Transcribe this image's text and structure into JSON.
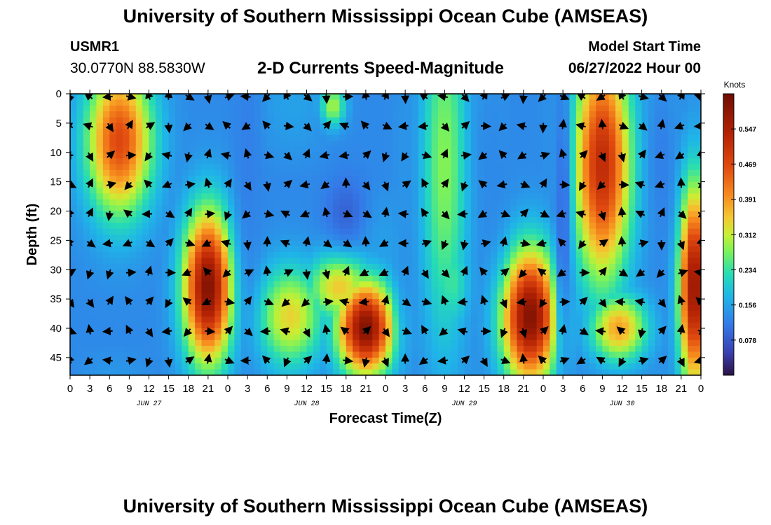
{
  "header": {
    "title": "University of Southern Mississippi Ocean Cube (AMSEAS)",
    "station_id": "USMR1",
    "coords": "30.0770N  88.5830W",
    "subtitle": "2-D Currents Speed-Magnitude",
    "start_label": "Model Start Time",
    "start_value": "06/27/2022 Hour 00"
  },
  "footer": {
    "title": "University of Southern Mississippi Ocean Cube (AMSEAS)"
  },
  "chart_data": {
    "type": "heatmap",
    "title": "2-D Currents Speed-Magnitude",
    "xlabel": "Forecast Time(Z)",
    "ylabel": "Depth (ft)",
    "x_range_hours": [
      0,
      96
    ],
    "y_range_ft": [
      0,
      48
    ],
    "x_ticks": [
      "0",
      "3",
      "6",
      "9",
      "12",
      "15",
      "18",
      "21",
      "0",
      "3",
      "6",
      "9",
      "12",
      "15",
      "18",
      "21",
      "0",
      "3",
      "6",
      "9",
      "12",
      "15",
      "18",
      "21",
      "0",
      "3",
      "6",
      "9",
      "12",
      "15",
      "18",
      "21",
      "0"
    ],
    "y_ticks": [
      "0",
      "5",
      "10",
      "15",
      "20",
      "25",
      "30",
      "35",
      "40",
      "45"
    ],
    "day_labels": [
      {
        "label": "JUN 27",
        "hour": 12
      },
      {
        "label": "JUN 28",
        "hour": 36
      },
      {
        "label": "JUN 29",
        "hour": 60
      },
      {
        "label": "JUN 30",
        "hour": 84
      }
    ],
    "colorbar": {
      "unit": "Knots",
      "ticks": [
        "0.547",
        "0.469",
        "0.391",
        "0.312",
        "0.234",
        "0.156",
        "0.078"
      ],
      "tick_values": [
        0.547,
        0.469,
        0.391,
        0.312,
        0.234,
        0.156,
        0.078
      ],
      "range": [
        0.0,
        0.625
      ]
    },
    "speed_blobs": [
      {
        "t": 7.5,
        "d": 8,
        "st": 3.5,
        "sd": 9,
        "v": 0.47
      },
      {
        "t": 21,
        "d": 33,
        "st": 2.6,
        "sd": 9,
        "v": 0.6
      },
      {
        "t": 33.5,
        "d": 38,
        "st": 3.5,
        "sd": 6,
        "v": 0.34
      },
      {
        "t": 45,
        "d": 40,
        "st": 3,
        "sd": 5.5,
        "v": 0.6
      },
      {
        "t": 41,
        "d": 33,
        "st": 3.5,
        "sd": 4,
        "v": 0.35
      },
      {
        "t": 57,
        "d": 12,
        "st": 2.5,
        "sd": 22,
        "v": 0.28
      },
      {
        "t": 70,
        "d": 38,
        "st": 3,
        "sd": 8,
        "v": 0.6
      },
      {
        "t": 81,
        "d": 12,
        "st": 3,
        "sd": 14,
        "v": 0.52
      },
      {
        "t": 83.5,
        "d": 40,
        "st": 3,
        "sd": 4,
        "v": 0.38
      },
      {
        "t": 95,
        "d": 33,
        "st": 1.6,
        "sd": 12,
        "v": 0.58
      },
      {
        "t": 58,
        "d": 32,
        "st": 2,
        "sd": 6,
        "v": 0.24
      },
      {
        "t": 40,
        "d": 2,
        "st": 1.3,
        "sd": 2.5,
        "v": 0.3
      }
    ],
    "low_blobs": [
      {
        "t": 27,
        "d": 10,
        "st": 1.5,
        "sd": 18,
        "v": 0.12
      },
      {
        "t": 51,
        "d": 14,
        "st": 1.2,
        "sd": 22,
        "v": 0.14
      },
      {
        "t": 64,
        "d": 10,
        "st": 1.8,
        "sd": 12,
        "v": 0.13
      },
      {
        "t": 90,
        "d": 10,
        "st": 1.3,
        "sd": 10,
        "v": 0.12
      },
      {
        "t": 42,
        "d": 20,
        "st": 2.2,
        "sd": 4,
        "v": 0.09
      },
      {
        "t": 75,
        "d": 20,
        "st": 0.9,
        "sd": 20,
        "v": 0.1
      }
    ],
    "base_value": 0.13
  }
}
